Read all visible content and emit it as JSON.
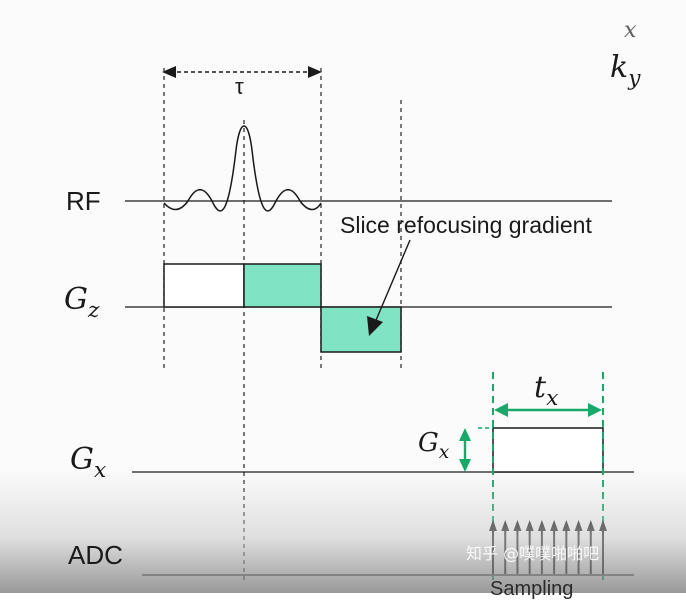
{
  "labels": {
    "tau": "τ",
    "rf": "RF",
    "gz_main": "G",
    "gz_sub": "z",
    "gx_main": "G",
    "gx_sub": "x",
    "adc": "ADC",
    "tx_main": "t",
    "tx_sub": "x",
    "gxamp_main": "G",
    "gxamp_sub": "x",
    "ky_main": "k",
    "ky_sub": "y",
    "top_partial": "x",
    "annotation": "Slice refocusing gradient",
    "bottom_partial": "Sampling"
  },
  "watermark": "知乎 @噗噗啪啪吧",
  "colors": {
    "fill": "#7fe3c4",
    "green": "#17a86a",
    "line": "#1a1a1a",
    "dashed": "#333333"
  }
}
